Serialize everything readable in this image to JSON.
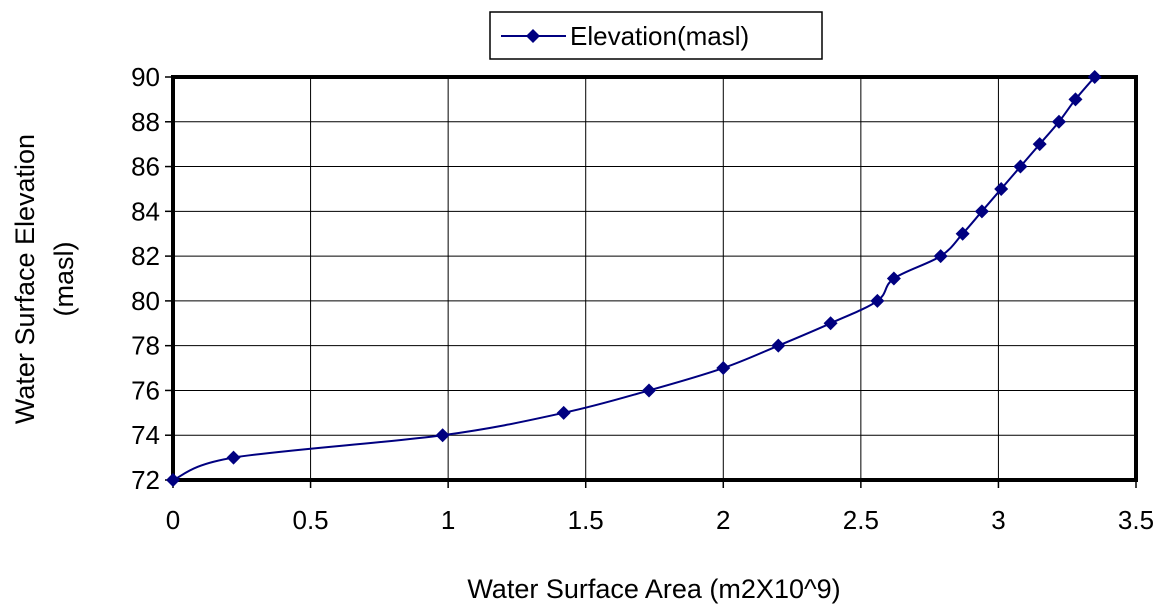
{
  "chart_data": {
    "type": "line",
    "title": "",
    "xlabel": "Water Surface Area (m2X10^9)",
    "ylabel": "Water Surface Elevation (masl)",
    "xlim": [
      0,
      3.5
    ],
    "ylim": [
      72,
      90
    ],
    "x_ticks": [
      "0",
      "0.5",
      "1",
      "1.5",
      "2",
      "2.5",
      "3",
      "3.5"
    ],
    "y_ticks": [
      "72",
      "74",
      "76",
      "78",
      "80",
      "82",
      "84",
      "86",
      "88",
      "90"
    ],
    "grid": true,
    "legend_position": "top-center",
    "colors": {
      "series": "#000080",
      "frame": "#000000",
      "grid": "#000000"
    },
    "series": [
      {
        "name": "Elevation(masl)",
        "marker": "diamond",
        "points": [
          [
            0,
            72
          ],
          [
            0.22,
            73
          ],
          [
            0.98,
            74
          ],
          [
            1.42,
            75
          ],
          [
            1.73,
            76
          ],
          [
            2.0,
            77
          ],
          [
            2.2,
            78
          ],
          [
            2.39,
            79
          ],
          [
            2.56,
            80
          ],
          [
            2.62,
            81
          ],
          [
            2.79,
            82
          ],
          [
            2.87,
            83
          ],
          [
            2.94,
            84
          ],
          [
            3.01,
            85
          ],
          [
            3.08,
            86
          ],
          [
            3.15,
            87
          ],
          [
            3.22,
            88
          ],
          [
            3.28,
            89
          ],
          [
            3.35,
            90
          ]
        ]
      }
    ]
  }
}
